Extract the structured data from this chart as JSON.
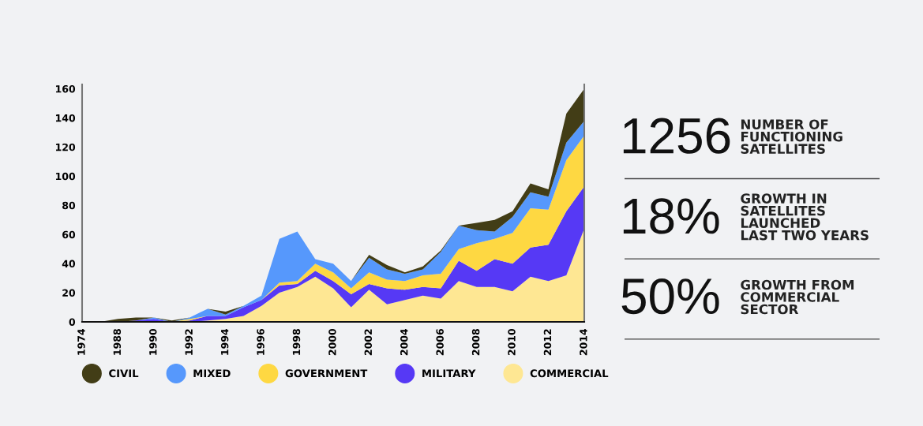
{
  "chart_data": [
    {
      "type": "area",
      "stacked": true,
      "categories": [
        "1974",
        null,
        "1988",
        null,
        "1990",
        null,
        "1992",
        null,
        "1994",
        null,
        "1996",
        null,
        "1998",
        null,
        "2000",
        null,
        "2002",
        null,
        "2004",
        null,
        "2006",
        null,
        "2008",
        null,
        "2010",
        null,
        "2012",
        null,
        "2014"
      ],
      "series": [
        {
          "name": "COMMERCIAL",
          "color": "#fee793",
          "values": [
            0,
            0,
            0,
            0,
            0,
            0,
            0,
            1,
            2,
            4,
            11,
            20,
            24,
            31,
            23,
            10,
            22,
            12,
            15,
            18,
            16,
            28,
            24,
            24,
            21,
            31,
            28,
            32,
            64
          ]
        },
        {
          "name": "MILITARY",
          "color": "#5639f5",
          "values": [
            0,
            0,
            0,
            1,
            2,
            0,
            1,
            3,
            2,
            6,
            4,
            5,
            2,
            4,
            5,
            9,
            4,
            11,
            7,
            6,
            7,
            14,
            11,
            19,
            19,
            20,
            25,
            44,
            29
          ]
        },
        {
          "name": "GOVERNMENT",
          "color": "#fed842",
          "values": [
            0,
            0,
            0,
            0,
            0,
            0,
            1,
            0,
            0,
            0,
            0,
            2,
            2,
            5,
            6,
            4,
            8,
            6,
            6,
            8,
            10,
            8,
            19,
            14,
            21,
            27,
            24,
            35,
            35
          ]
        },
        {
          "name": "MIXED",
          "color": "#5698fc",
          "values": [
            0,
            0,
            0,
            0,
            1,
            0,
            1,
            5,
            1,
            1,
            3,
            30,
            34,
            3,
            6,
            5,
            10,
            7,
            5,
            4,
            15,
            16,
            9,
            5,
            11,
            11,
            9,
            12,
            10
          ]
        },
        {
          "name": "CIVIL",
          "color": "#423d16",
          "values": [
            0,
            0,
            2,
            2,
            0,
            1,
            0,
            0,
            2,
            0,
            0,
            0,
            0,
            0,
            0,
            0,
            2,
            3,
            1,
            2,
            1,
            0,
            5,
            8,
            4,
            6,
            5,
            20,
            22
          ]
        }
      ],
      "ylim": [
        0,
        163
      ],
      "yticks": [
        0,
        20,
        40,
        60,
        80,
        100,
        120,
        140,
        160
      ],
      "grid": false,
      "legend": "bottom"
    },
    {
      "type": "other",
      "annotations": [
        "1256",
        "NUMBER OF\nFUNCTIONING\nSATELLITES",
        "18%",
        "GROWTH IN\nSATELLITES\nLAUNCHED\nLAST TWO YEARS",
        "50%",
        "GROWTH FROM\nCOMMERCIAL\nSECTOR"
      ]
    }
  ]
}
